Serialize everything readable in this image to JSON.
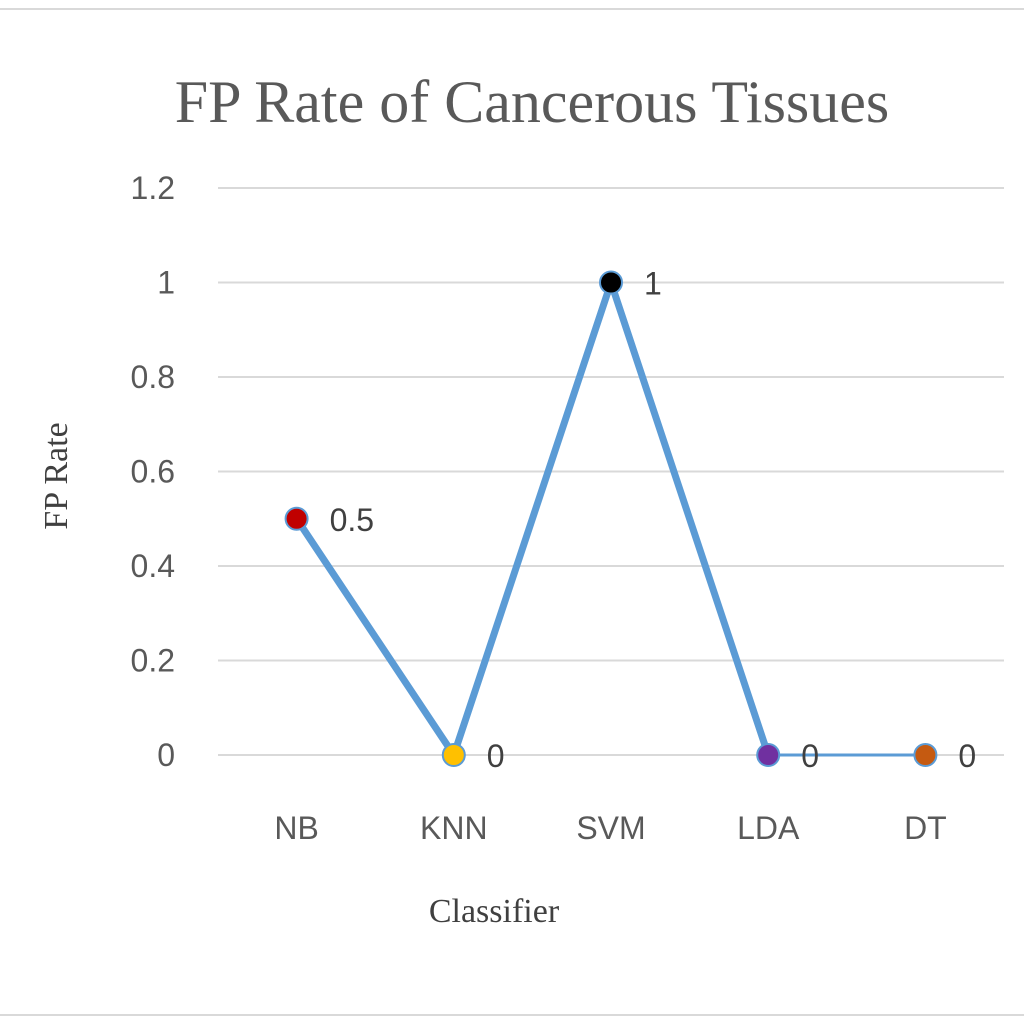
{
  "chart_data": {
    "type": "line",
    "title": "FP Rate of Cancerous Tissues",
    "xlabel": "Classifier",
    "ylabel": "FP Rate",
    "categories": [
      "NB",
      "KNN",
      "SVM",
      "LDA",
      "DT"
    ],
    "series": [
      {
        "values": [
          0.5,
          0,
          1,
          0,
          0
        ],
        "data_labels": [
          "0.5",
          "0",
          "1",
          "0",
          "0"
        ],
        "line_color": "#5b9bd5",
        "point_colors": [
          "#c00000",
          "#ffc000",
          "#000000",
          "#7030a0",
          "#c55a11"
        ]
      }
    ],
    "yticks": [
      "0",
      "0.2",
      "0.4",
      "0.6",
      "0.8",
      "1",
      "1.2"
    ],
    "ylim": [
      0,
      1.2
    ],
    "grid": true,
    "legend": "none"
  }
}
